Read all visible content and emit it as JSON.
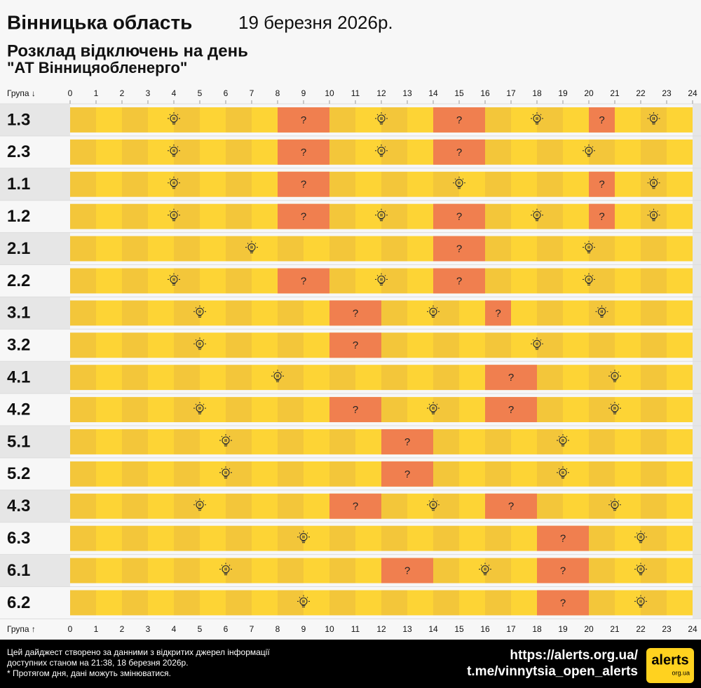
{
  "chart_data": {
    "type": "timeline",
    "title": "Вінницька область",
    "date": "19 березня 2026р.",
    "subtitle": "Розклад відключень на день",
    "provider": "\"АТ Вінницяобленерго\"",
    "axis_label_top": "Група ↓",
    "axis_label_bottom": "Група ↑",
    "outage_label": "?",
    "xlim": [
      0,
      24
    ],
    "xticks": [
      0,
      1,
      2,
      3,
      4,
      5,
      6,
      7,
      8,
      9,
      10,
      11,
      12,
      13,
      14,
      15,
      16,
      17,
      18,
      19,
      20,
      21,
      22,
      23,
      24
    ],
    "outage_color": "#f07f4f",
    "rows": [
      {
        "group": "1.3",
        "outages": [
          [
            8,
            10
          ],
          [
            14,
            16
          ],
          [
            20,
            21
          ]
        ]
      },
      {
        "group": "2.3",
        "outages": [
          [
            8,
            10
          ],
          [
            14,
            16
          ]
        ]
      },
      {
        "group": "1.1",
        "outages": [
          [
            8,
            10
          ],
          [
            20,
            21
          ]
        ]
      },
      {
        "group": "1.2",
        "outages": [
          [
            8,
            10
          ],
          [
            14,
            16
          ],
          [
            20,
            21
          ]
        ]
      },
      {
        "group": "2.1",
        "outages": [
          [
            14,
            16
          ]
        ]
      },
      {
        "group": "2.2",
        "outages": [
          [
            8,
            10
          ],
          [
            14,
            16
          ]
        ]
      },
      {
        "group": "3.1",
        "outages": [
          [
            10,
            12
          ],
          [
            16,
            17
          ]
        ]
      },
      {
        "group": "3.2",
        "outages": [
          [
            10,
            12
          ]
        ]
      },
      {
        "group": "4.1",
        "outages": [
          [
            16,
            18
          ]
        ]
      },
      {
        "group": "4.2",
        "outages": [
          [
            10,
            12
          ],
          [
            16,
            18
          ]
        ]
      },
      {
        "group": "5.1",
        "outages": [
          [
            12,
            14
          ]
        ]
      },
      {
        "group": "5.2",
        "outages": [
          [
            12,
            14
          ]
        ]
      },
      {
        "group": "4.3",
        "outages": [
          [
            10,
            12
          ],
          [
            16,
            18
          ]
        ]
      },
      {
        "group": "6.3",
        "outages": [
          [
            18,
            20
          ]
        ]
      },
      {
        "group": "6.1",
        "outages": [
          [
            12,
            14
          ],
          [
            18,
            20
          ]
        ]
      },
      {
        "group": "6.2",
        "outages": [
          [
            18,
            20
          ]
        ]
      }
    ]
  },
  "footer": {
    "notes": [
      "Цей дайджест створено за данними з відкритих джерел інформації",
      "доступних станом на 21:38, 18 березня 2026р.",
      "* Протягом дня, дані можуть змінюватися."
    ],
    "links": [
      "https://alerts.org.ua/",
      "t.me/vinnytsia_open_alerts"
    ],
    "logo": "alerts",
    "logo_sub": "org.ua"
  }
}
